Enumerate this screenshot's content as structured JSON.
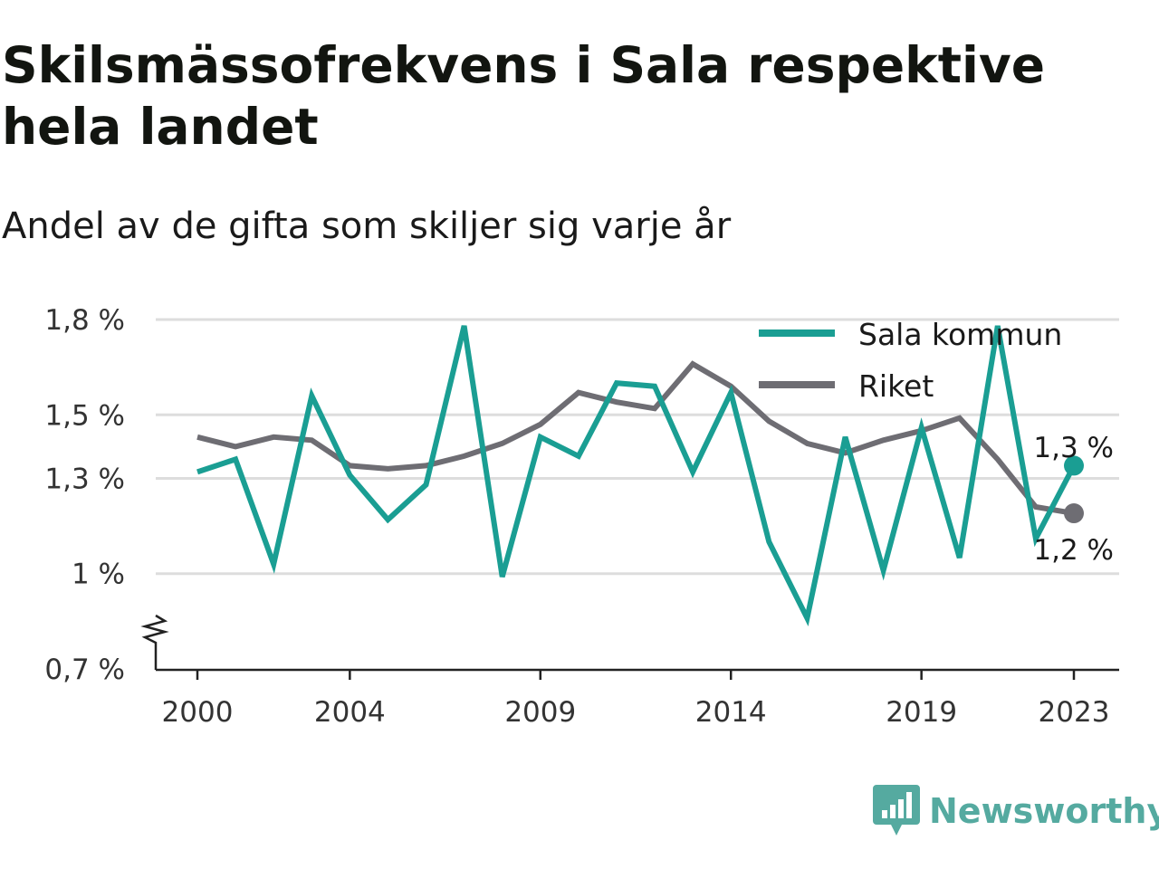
{
  "title": "Skilsmässofrekvens i Sala respektive hela landet",
  "subtitle": "Andel av de gifta som skiljer sig varje år",
  "brand": {
    "name": "Newsworthy",
    "color": "#55aaa0"
  },
  "chart_data": {
    "type": "line",
    "x": [
      2000,
      2001,
      2002,
      2003,
      2004,
      2005,
      2006,
      2007,
      2008,
      2009,
      2010,
      2011,
      2012,
      2013,
      2014,
      2015,
      2016,
      2017,
      2018,
      2019,
      2020,
      2021,
      2022,
      2023
    ],
    "series": [
      {
        "name": "Sala kommun",
        "color": "#1a9e93",
        "values": [
          1.32,
          1.36,
          1.03,
          1.56,
          1.31,
          1.17,
          1.28,
          1.78,
          0.99,
          1.43,
          1.37,
          1.6,
          1.59,
          1.32,
          1.57,
          1.1,
          0.86,
          1.43,
          1.01,
          1.46,
          1.05,
          1.78,
          1.11,
          1.34
        ]
      },
      {
        "name": "Riket",
        "color": "#6e6d73",
        "values": [
          1.43,
          1.4,
          1.43,
          1.42,
          1.34,
          1.33,
          1.34,
          1.37,
          1.41,
          1.47,
          1.57,
          1.54,
          1.52,
          1.66,
          1.59,
          1.48,
          1.41,
          1.38,
          1.42,
          1.45,
          1.49,
          1.36,
          1.21,
          1.19
        ]
      }
    ],
    "y_ticks": [
      {
        "value": 0.7,
        "label": "0,7 %"
      },
      {
        "value": 1.0,
        "label": "1 %"
      },
      {
        "value": 1.3,
        "label": "1,3 %"
      },
      {
        "value": 1.5,
        "label": "1,5 %"
      },
      {
        "value": 1.8,
        "label": "1,8 %"
      }
    ],
    "x_ticks": [
      2000,
      2004,
      2009,
      2014,
      2019,
      2023
    ],
    "end_labels": {
      "Sala kommun": "1,3 %",
      "Riket": "1,2 %"
    },
    "ylim": [
      0.7,
      1.8
    ],
    "axis_break": true,
    "grid": true,
    "legend_position": "top-right"
  }
}
